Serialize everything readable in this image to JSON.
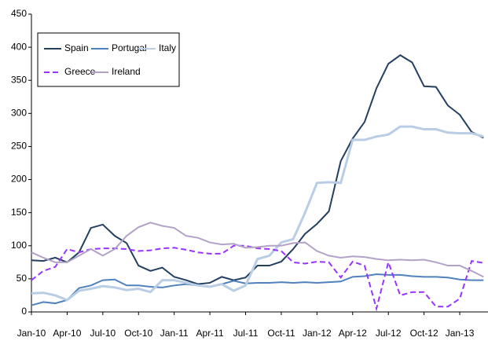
{
  "chart_data": {
    "type": "line",
    "categories": [
      "Jan-10",
      null,
      null,
      "Apr-10",
      null,
      null,
      "Jul-10",
      null,
      null,
      "Oct-10",
      null,
      null,
      "Jan-11",
      null,
      null,
      "Apr-11",
      null,
      null,
      "Jul-11",
      null,
      null,
      "Oct-11",
      null,
      null,
      "Jan-12",
      null,
      null,
      "Apr-12",
      null,
      null,
      "Jul-12",
      null,
      null,
      "Oct-12",
      null,
      null,
      "Jan-13",
      null,
      null
    ],
    "series": [
      {
        "name": "Spain",
        "color": "#243f60",
        "dash": false,
        "values": [
          78,
          77,
          82,
          75,
          90,
          127,
          132,
          115,
          104,
          70,
          62,
          67,
          53,
          48,
          42,
          44,
          53,
          48,
          52,
          70,
          70,
          76,
          95,
          118,
          133,
          152,
          228,
          262,
          287,
          338,
          375,
          388,
          377,
          341,
          340,
          312,
          298,
          272,
          263
        ]
      },
      {
        "name": "Portugal",
        "color": "#4f81bd",
        "dash": false,
        "values": [
          10,
          15,
          13,
          18,
          36,
          40,
          48,
          49,
          40,
          40,
          38,
          37,
          40,
          42,
          40,
          38,
          42,
          47,
          43,
          44,
          44,
          45,
          44,
          45,
          44,
          45,
          46,
          53,
          54,
          57,
          56,
          56,
          54,
          53,
          53,
          52,
          49,
          48,
          48
        ]
      },
      {
        "name": "Italy",
        "color": "#b9cde5",
        "dash": false,
        "values": [
          28,
          29,
          25,
          18,
          32,
          35,
          39,
          37,
          33,
          35,
          30,
          48,
          48,
          44,
          40,
          38,
          42,
          32,
          40,
          80,
          85,
          105,
          110,
          150,
          195,
          196,
          195,
          260,
          260,
          265,
          268,
          280,
          280,
          276,
          276,
          271,
          270,
          270,
          265
        ]
      },
      {
        "name": "Greece",
        "color": "#9933ff",
        "dash": true,
        "values": [
          48,
          62,
          68,
          95,
          90,
          95,
          96,
          96,
          95,
          92,
          93,
          96,
          97,
          94,
          90,
          88,
          88,
          100,
          100,
          96,
          95,
          92,
          75,
          73,
          76,
          75,
          52,
          76,
          70,
          5,
          75,
          25,
          30,
          30,
          8,
          8,
          20,
          77,
          74
        ]
      },
      {
        "name": "Ireland",
        "color": "#b3a2c7",
        "dash": false,
        "values": [
          90,
          82,
          75,
          75,
          85,
          95,
          85,
          95,
          115,
          128,
          135,
          130,
          127,
          115,
          112,
          105,
          102,
          103,
          97,
          98,
          100,
          100,
          104,
          105,
          92,
          85,
          82,
          84,
          83,
          80,
          78,
          79,
          78,
          79,
          75,
          70,
          70,
          62,
          53
        ]
      }
    ],
    "ylim": [
      0,
      450
    ],
    "yticks": [
      0,
      50,
      100,
      150,
      200,
      250,
      300,
      350,
      400,
      450
    ],
    "grid": false,
    "legend": "upper-left"
  }
}
